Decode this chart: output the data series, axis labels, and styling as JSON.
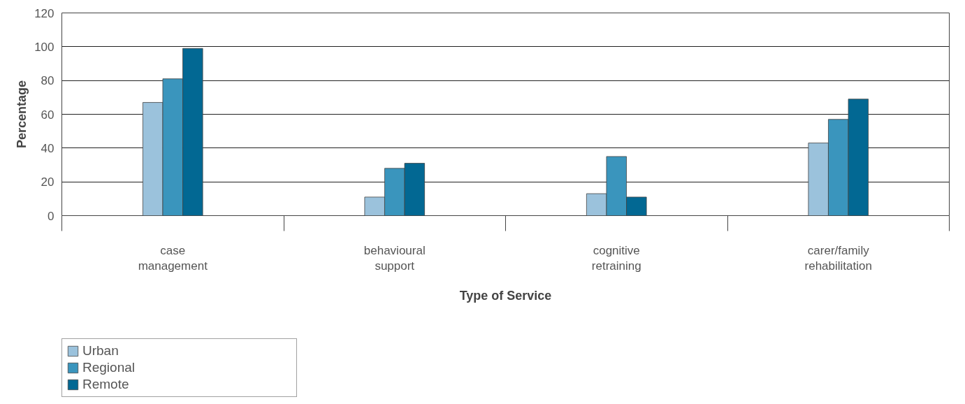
{
  "chart_data": {
    "type": "bar",
    "xlabel": "Type of Service",
    "ylabel": "Percentage",
    "categories": [
      "case management",
      "behavioural support",
      "cognitive retraining",
      "carer/family rehabilitation"
    ],
    "series": [
      {
        "name": "Urban",
        "color": "#9bc2dc",
        "values": [
          67,
          11,
          13,
          43
        ]
      },
      {
        "name": "Regional",
        "color": "#3a95bd",
        "values": [
          81,
          28,
          35,
          57
        ]
      },
      {
        "name": "Remote",
        "color": "#026893",
        "values": [
          99,
          31,
          11,
          69
        ]
      }
    ],
    "ylim": [
      0,
      120
    ],
    "yticks": [
      0,
      20,
      40,
      60,
      80,
      100,
      120
    ],
    "grid": "y",
    "legend": "bottom left"
  }
}
